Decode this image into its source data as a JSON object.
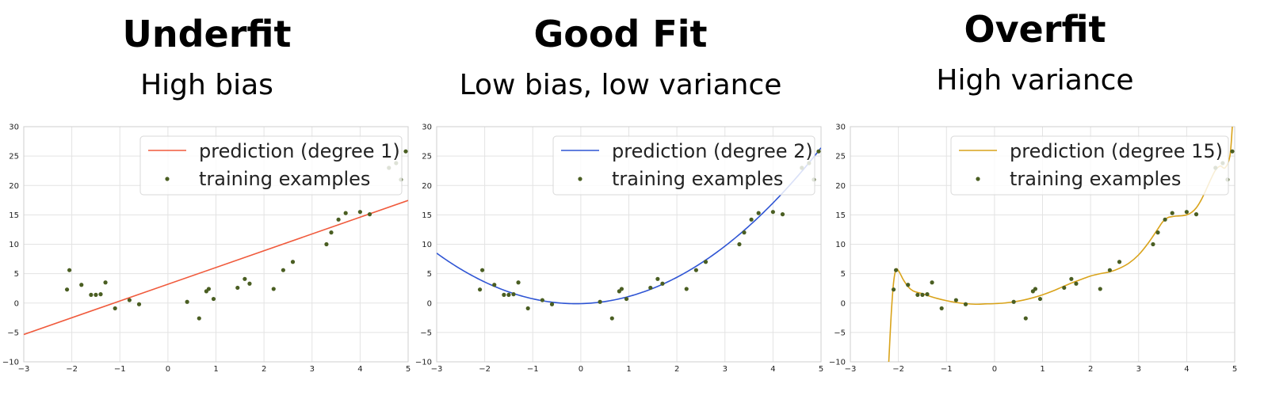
{
  "panels": [
    {
      "title": "Underfit",
      "subtitle": "High bias"
    },
    {
      "title": "Good Fit",
      "subtitle": "Low bias, low variance"
    },
    {
      "title": "Overfit",
      "subtitle": "High variance"
    }
  ],
  "chart_data": [
    {
      "type": "scatter",
      "xlim": [
        -3,
        5
      ],
      "ylim": [
        -10,
        30
      ],
      "xticks": [
        -3,
        -2,
        -1,
        0,
        1,
        2,
        3,
        4,
        5
      ],
      "yticks": [
        -10,
        -5,
        0,
        5,
        10,
        15,
        20,
        25,
        30
      ],
      "grid": true,
      "legend_position": "top-right",
      "series": [
        {
          "name": "prediction (degree 1)",
          "kind": "line",
          "color": "#f05a3c",
          "model": "linear",
          "coef": [
            3.2,
            2.85
          ]
        },
        {
          "name": "training examples",
          "kind": "points",
          "color": "#4a5e22",
          "ref": "points"
        }
      ]
    },
    {
      "type": "scatter",
      "xlim": [
        -3,
        5
      ],
      "ylim": [
        -10,
        30
      ],
      "xticks": [
        -3,
        -2,
        -1,
        0,
        1,
        2,
        3,
        4,
        5
      ],
      "yticks": [
        -10,
        -5,
        0,
        5,
        10,
        15,
        20,
        25,
        30
      ],
      "grid": true,
      "legend_position": "top-right",
      "series": [
        {
          "name": "prediction (degree 2)",
          "kind": "line",
          "color": "#2f55d4",
          "model": "quadratic",
          "coef": [
            -0.1,
            0.2,
            1.02
          ]
        },
        {
          "name": "training examples",
          "kind": "points",
          "color": "#4a5e22",
          "ref": "points"
        }
      ]
    },
    {
      "type": "scatter",
      "xlim": [
        -3,
        5
      ],
      "ylim": [
        -10,
        30
      ],
      "xticks": [
        -3,
        -2,
        -1,
        0,
        1,
        2,
        3,
        4,
        5
      ],
      "yticks": [
        -10,
        -5,
        0,
        5,
        10,
        15,
        20,
        25,
        30
      ],
      "grid": true,
      "legend_position": "top-right",
      "series": [
        {
          "name": "prediction (degree 15)",
          "kind": "line",
          "color": "#d9a31a",
          "model": "interpolated",
          "x": [
            -2.2,
            -2.15,
            -2.1,
            -2.05,
            -2.0,
            -1.95,
            -1.9,
            -1.8,
            -1.7,
            -1.6,
            -1.5,
            -1.4,
            -1.2,
            -1.0,
            -0.8,
            -0.6,
            -0.4,
            -0.2,
            0.0,
            0.2,
            0.4,
            0.6,
            0.8,
            1.0,
            1.2,
            1.4,
            1.6,
            1.8,
            2.0,
            2.2,
            2.4,
            2.6,
            2.8,
            3.0,
            3.2,
            3.4,
            3.5,
            3.6,
            3.7,
            3.8,
            3.9,
            4.0,
            4.1,
            4.2,
            4.3,
            4.4,
            4.5,
            4.6,
            4.7,
            4.8,
            4.9,
            4.95
          ],
          "y": [
            -10,
            -2,
            3.5,
            5.7,
            5.5,
            4.8,
            4.0,
            2.8,
            2.1,
            1.8,
            1.6,
            1.3,
            0.8,
            0.4,
            0.1,
            -0.1,
            -0.2,
            -0.15,
            -0.1,
            0.0,
            0.2,
            0.5,
            0.9,
            1.4,
            2.0,
            2.7,
            3.4,
            4.0,
            4.6,
            5.0,
            5.3,
            5.9,
            6.8,
            8.2,
            10.2,
            12.6,
            13.8,
            14.5,
            14.7,
            14.8,
            14.85,
            15.0,
            15.4,
            16.2,
            17.5,
            19.2,
            21.0,
            22.6,
            23.3,
            23.0,
            25.0,
            30
          ]
        },
        {
          "name": "training examples",
          "kind": "points",
          "color": "#4a5e22",
          "ref": "points"
        }
      ]
    }
  ],
  "points": {
    "x": [
      -2.1,
      -2.05,
      -1.8,
      -1.6,
      -1.5,
      -1.4,
      -1.3,
      -1.1,
      -0.8,
      -0.6,
      0.4,
      0.65,
      0.8,
      0.85,
      0.95,
      1.45,
      1.6,
      1.7,
      2.2,
      2.4,
      2.6,
      3.3,
      3.4,
      3.55,
      3.7,
      4.0,
      4.2,
      4.6,
      4.75,
      4.85,
      4.95
    ],
    "y": [
      2.3,
      5.6,
      3.1,
      1.4,
      1.4,
      1.5,
      3.5,
      -0.9,
      0.5,
      -0.2,
      0.2,
      -2.6,
      2.0,
      2.4,
      0.7,
      2.6,
      4.1,
      3.3,
      2.4,
      5.6,
      7.0,
      10.0,
      12.0,
      14.2,
      15.3,
      15.5,
      15.1,
      23.0,
      23.8,
      21.0,
      25.8
    ]
  }
}
